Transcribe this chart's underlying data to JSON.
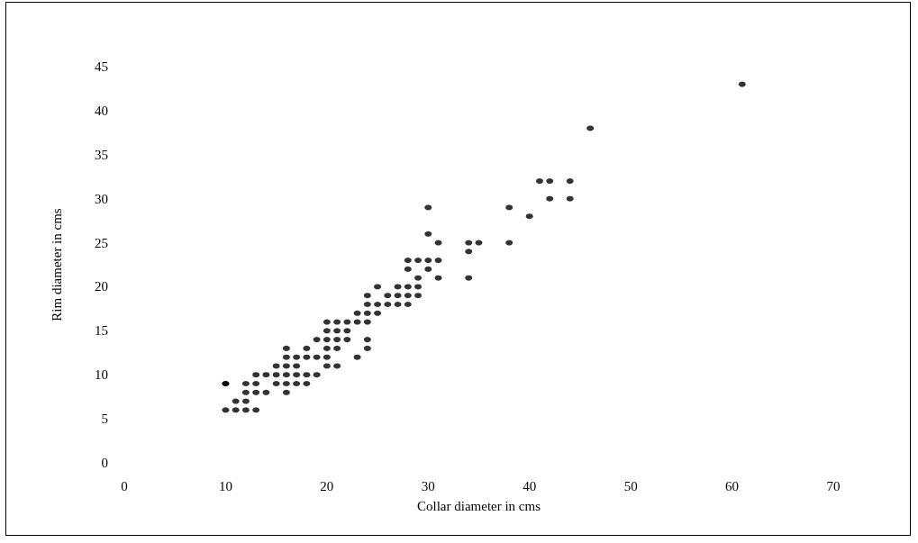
{
  "chart_data": {
    "type": "scatter",
    "xlabel": "Collar diameter in cms",
    "ylabel": "Rim diameter in cms",
    "x": [
      10,
      10,
      11,
      12,
      13,
      11,
      12,
      12,
      13,
      14,
      16,
      10,
      12,
      13,
      15,
      16,
      17,
      18,
      13,
      14,
      15,
      16,
      17,
      18,
      19,
      15,
      16,
      17,
      20,
      21,
      16,
      17,
      18,
      19,
      20,
      23,
      16,
      18,
      20,
      21,
      24,
      19,
      20,
      21,
      22,
      24,
      20,
      21,
      22,
      20,
      21,
      22,
      23,
      24,
      23,
      24,
      25,
      24,
      25,
      26,
      27,
      28,
      24,
      26,
      27,
      28,
      29,
      25,
      27,
      28,
      29,
      29,
      31,
      28,
      30,
      28,
      29,
      30,
      31,
      31,
      30,
      34,
      35,
      38,
      34,
      34,
      38,
      40,
      30,
      41,
      42,
      44,
      42,
      44,
      46,
      61
    ],
    "values": [
      9,
      6,
      6,
      6,
      6,
      7,
      7,
      8,
      8,
      8,
      8,
      9,
      9,
      9,
      9,
      9,
      9,
      9,
      10,
      10,
      10,
      10,
      10,
      10,
      10,
      11,
      11,
      11,
      11,
      11,
      12,
      12,
      12,
      12,
      12,
      12,
      13,
      13,
      13,
      13,
      13,
      14,
      14,
      14,
      14,
      14,
      15,
      15,
      15,
      16,
      16,
      16,
      16,
      16,
      17,
      17,
      17,
      18,
      18,
      18,
      18,
      18,
      19,
      19,
      19,
      19,
      19,
      20,
      20,
      20,
      20,
      21,
      21,
      22,
      22,
      23,
      23,
      23,
      23,
      25,
      26,
      25,
      25,
      25,
      24,
      21,
      29,
      28,
      29,
      32,
      32,
      32,
      30,
      30,
      38,
      43
    ],
    "color": "#000000",
    "marker": "circle",
    "grid": false,
    "xlim": [
      0,
      70
    ],
    "xticks": [
      0,
      10,
      20,
      30,
      40,
      50,
      60,
      70
    ],
    "ylim": [
      0,
      45
    ],
    "yticks": [
      0,
      5,
      10,
      15,
      20,
      25,
      30,
      35,
      40,
      45
    ]
  }
}
